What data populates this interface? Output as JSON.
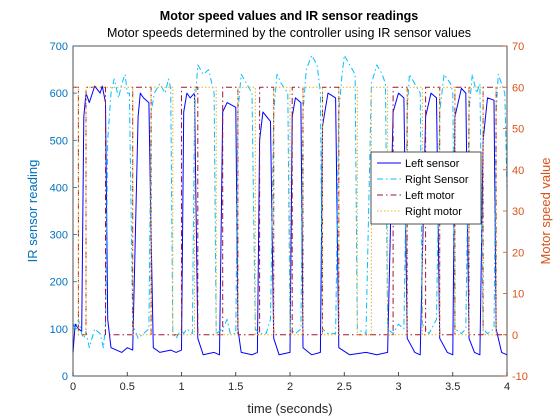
{
  "chart_data": {
    "type": "line",
    "title": "Motor speed values and IR sensor readings",
    "subtitle": "Motor speeds determined by the controller using IR sensor values",
    "xlabel": "time (seconds)",
    "ylabel_left": "IR sensor reading",
    "ylabel_right": "Motor speed value",
    "xlim": [
      0,
      4
    ],
    "ylim_left": [
      0,
      700
    ],
    "ylim_right": [
      -10,
      70
    ],
    "x_ticks": [
      "0",
      "0.5",
      "1",
      "1.5",
      "2",
      "2.5",
      "3",
      "3.5",
      "4"
    ],
    "y_ticks_left": [
      "0",
      "100",
      "200",
      "300",
      "400",
      "500",
      "600",
      "700"
    ],
    "y_ticks_right": [
      "-10",
      "0",
      "10",
      "20",
      "30",
      "40",
      "50",
      "60",
      "70"
    ],
    "legend_position": "right-middle",
    "grid": false,
    "series": [
      {
        "name": "Left sensor",
        "axis": "left",
        "color": "#0000FF",
        "style": "solid",
        "points": [
          [
            0,
            50
          ],
          [
            0.02,
            110
          ],
          [
            0.05,
            100
          ],
          [
            0.08,
            95
          ],
          [
            0.1,
            550
          ],
          [
            0.12,
            600
          ],
          [
            0.15,
            580
          ],
          [
            0.2,
            615
          ],
          [
            0.25,
            600
          ],
          [
            0.27,
            615
          ],
          [
            0.3,
            580
          ],
          [
            0.32,
            120
          ],
          [
            0.35,
            60
          ],
          [
            0.4,
            55
          ],
          [
            0.45,
            50
          ],
          [
            0.5,
            60
          ],
          [
            0.55,
            55
          ],
          [
            0.6,
            550
          ],
          [
            0.62,
            600
          ],
          [
            0.65,
            590
          ],
          [
            0.7,
            580
          ],
          [
            0.72,
            300
          ],
          [
            0.74,
            60
          ],
          [
            0.8,
            50
          ],
          [
            0.9,
            55
          ],
          [
            0.95,
            50
          ],
          [
            1.0,
            55
          ],
          [
            1.02,
            560
          ],
          [
            1.05,
            600
          ],
          [
            1.08,
            590
          ],
          [
            1.12,
            600
          ],
          [
            1.15,
            80
          ],
          [
            1.2,
            45
          ],
          [
            1.3,
            50
          ],
          [
            1.35,
            45
          ],
          [
            1.38,
            560
          ],
          [
            1.42,
            580
          ],
          [
            1.5,
            570
          ],
          [
            1.52,
            100
          ],
          [
            1.55,
            50
          ],
          [
            1.65,
            45
          ],
          [
            1.7,
            50
          ],
          [
            1.72,
            500
          ],
          [
            1.75,
            560
          ],
          [
            1.82,
            540
          ],
          [
            1.85,
            80
          ],
          [
            1.9,
            45
          ],
          [
            2.0,
            50
          ],
          [
            2.02,
            550
          ],
          [
            2.05,
            590
          ],
          [
            2.1,
            580
          ],
          [
            2.12,
            60
          ],
          [
            2.2,
            45
          ],
          [
            2.28,
            50
          ],
          [
            2.3,
            530
          ],
          [
            2.35,
            600
          ],
          [
            2.42,
            590
          ],
          [
            2.45,
            60
          ],
          [
            2.55,
            45
          ],
          [
            2.7,
            50
          ],
          [
            2.8,
            45
          ],
          [
            2.9,
            50
          ],
          [
            2.95,
            560
          ],
          [
            3.0,
            600
          ],
          [
            3.05,
            590
          ],
          [
            3.08,
            80
          ],
          [
            3.15,
            50
          ],
          [
            3.2,
            45
          ],
          [
            3.25,
            550
          ],
          [
            3.3,
            600
          ],
          [
            3.35,
            590
          ],
          [
            3.38,
            80
          ],
          [
            3.45,
            50
          ],
          [
            3.5,
            45
          ],
          [
            3.52,
            550
          ],
          [
            3.58,
            610
          ],
          [
            3.62,
            600
          ],
          [
            3.65,
            80
          ],
          [
            3.7,
            50
          ],
          [
            3.75,
            45
          ],
          [
            3.78,
            500
          ],
          [
            3.82,
            590
          ],
          [
            3.88,
            585
          ],
          [
            3.9,
            100
          ],
          [
            3.95,
            50
          ],
          [
            4.0,
            45
          ]
        ]
      },
      {
        "name": "Right Sensor",
        "axis": "left",
        "color": "#00BFFF",
        "style": "dashdot",
        "points": [
          [
            0,
            110
          ],
          [
            0.02,
            100
          ],
          [
            0.05,
            120
          ],
          [
            0.08,
            90
          ],
          [
            0.1,
            80
          ],
          [
            0.12,
            95
          ],
          [
            0.15,
            60
          ],
          [
            0.2,
            100
          ],
          [
            0.25,
            90
          ],
          [
            0.28,
            60
          ],
          [
            0.3,
            110
          ],
          [
            0.32,
            500
          ],
          [
            0.35,
            600
          ],
          [
            0.38,
            630
          ],
          [
            0.42,
            590
          ],
          [
            0.45,
            620
          ],
          [
            0.48,
            640
          ],
          [
            0.5,
            600
          ],
          [
            0.52,
            600
          ],
          [
            0.55,
            110
          ],
          [
            0.6,
            80
          ],
          [
            0.65,
            90
          ],
          [
            0.7,
            100
          ],
          [
            0.72,
            560
          ],
          [
            0.75,
            600
          ],
          [
            0.8,
            620
          ],
          [
            0.85,
            600
          ],
          [
            0.88,
            630
          ],
          [
            0.9,
            610
          ],
          [
            0.92,
            90
          ],
          [
            0.95,
            80
          ],
          [
            1.0,
            100
          ],
          [
            1.02,
            90
          ],
          [
            1.05,
            100
          ],
          [
            1.1,
            90
          ],
          [
            1.12,
            560
          ],
          [
            1.15,
            660
          ],
          [
            1.2,
            640
          ],
          [
            1.25,
            650
          ],
          [
            1.3,
            600
          ],
          [
            1.32,
            90
          ],
          [
            1.38,
            100
          ],
          [
            1.42,
            120
          ],
          [
            1.45,
            90
          ],
          [
            1.5,
            90
          ],
          [
            1.52,
            560
          ],
          [
            1.55,
            640
          ],
          [
            1.6,
            620
          ],
          [
            1.65,
            600
          ],
          [
            1.68,
            100
          ],
          [
            1.72,
            90
          ],
          [
            1.78,
            90
          ],
          [
            1.82,
            120
          ],
          [
            1.85,
            560
          ],
          [
            1.88,
            640
          ],
          [
            1.92,
            620
          ],
          [
            1.98,
            600
          ],
          [
            2.0,
            100
          ],
          [
            2.05,
            90
          ],
          [
            2.1,
            100
          ],
          [
            2.12,
            560
          ],
          [
            2.15,
            650
          ],
          [
            2.2,
            680
          ],
          [
            2.25,
            660
          ],
          [
            2.28,
            600
          ],
          [
            2.3,
            100
          ],
          [
            2.35,
            90
          ],
          [
            2.42,
            90
          ],
          [
            2.45,
            560
          ],
          [
            2.48,
            640
          ],
          [
            2.5,
            680
          ],
          [
            2.55,
            660
          ],
          [
            2.6,
            640
          ],
          [
            2.62,
            100
          ],
          [
            2.7,
            90
          ],
          [
            2.75,
            620
          ],
          [
            2.8,
            660
          ],
          [
            2.85,
            640
          ],
          [
            2.88,
            620
          ],
          [
            2.9,
            100
          ],
          [
            2.95,
            90
          ],
          [
            3.0,
            110
          ],
          [
            3.05,
            100
          ],
          [
            3.08,
            560
          ],
          [
            3.1,
            640
          ],
          [
            3.15,
            620
          ],
          [
            3.2,
            600
          ],
          [
            3.22,
            110
          ],
          [
            3.28,
            90
          ],
          [
            3.35,
            120
          ],
          [
            3.38,
            560
          ],
          [
            3.42,
            640
          ],
          [
            3.48,
            620
          ],
          [
            3.5,
            600
          ],
          [
            3.52,
            100
          ],
          [
            3.58,
            90
          ],
          [
            3.62,
            100
          ],
          [
            3.65,
            560
          ],
          [
            3.68,
            640
          ],
          [
            3.72,
            600
          ],
          [
            3.75,
            620
          ],
          [
            3.78,
            100
          ],
          [
            3.82,
            90
          ],
          [
            3.88,
            100
          ],
          [
            3.9,
            560
          ],
          [
            3.92,
            640
          ],
          [
            3.95,
            620
          ],
          [
            3.98,
            600
          ],
          [
            4.0,
            400
          ]
        ]
      },
      {
        "name": "Left motor",
        "axis": "right",
        "color": "#A2142F",
        "style": "dashdot",
        "points": [
          [
            0,
            60
          ],
          [
            0.05,
            60
          ],
          [
            0.05,
            0
          ],
          [
            0.12,
            0
          ],
          [
            0.12,
            60
          ],
          [
            0.3,
            60
          ],
          [
            0.3,
            0
          ],
          [
            0.55,
            0
          ],
          [
            0.55,
            60
          ],
          [
            0.72,
            60
          ],
          [
            0.72,
            0
          ],
          [
            1.0,
            0
          ],
          [
            1.0,
            60
          ],
          [
            1.15,
            60
          ],
          [
            1.15,
            0
          ],
          [
            1.38,
            0
          ],
          [
            1.38,
            60
          ],
          [
            1.52,
            60
          ],
          [
            1.52,
            0
          ],
          [
            1.72,
            0
          ],
          [
            1.72,
            60
          ],
          [
            1.85,
            60
          ],
          [
            1.85,
            0
          ],
          [
            2.02,
            0
          ],
          [
            2.02,
            60
          ],
          [
            2.12,
            60
          ],
          [
            2.12,
            0
          ],
          [
            2.3,
            0
          ],
          [
            2.3,
            60
          ],
          [
            2.45,
            60
          ],
          [
            2.45,
            0
          ],
          [
            2.95,
            0
          ],
          [
            2.95,
            60
          ],
          [
            3.08,
            60
          ],
          [
            3.08,
            0
          ],
          [
            3.25,
            0
          ],
          [
            3.25,
            60
          ],
          [
            3.38,
            60
          ],
          [
            3.38,
            0
          ],
          [
            3.52,
            0
          ],
          [
            3.52,
            60
          ],
          [
            3.65,
            60
          ],
          [
            3.65,
            0
          ],
          [
            3.78,
            0
          ],
          [
            3.78,
            60
          ],
          [
            3.9,
            60
          ],
          [
            3.9,
            0
          ],
          [
            4.0,
            0
          ]
        ]
      },
      {
        "name": "Right motor",
        "axis": "right",
        "color": "#EDB120",
        "style": "dotted",
        "points": [
          [
            0,
            60
          ],
          [
            0.05,
            60
          ],
          [
            0.05,
            0
          ],
          [
            0.12,
            0
          ],
          [
            0.12,
            60
          ],
          [
            0.32,
            60
          ],
          [
            0.32,
            60
          ],
          [
            0.55,
            60
          ],
          [
            0.55,
            0
          ],
          [
            0.72,
            0
          ],
          [
            0.72,
            60
          ],
          [
            0.92,
            60
          ],
          [
            0.92,
            0
          ],
          [
            1.12,
            0
          ],
          [
            1.12,
            60
          ],
          [
            1.32,
            60
          ],
          [
            1.32,
            0
          ],
          [
            1.52,
            0
          ],
          [
            1.52,
            60
          ],
          [
            1.68,
            60
          ],
          [
            1.68,
            0
          ],
          [
            1.85,
            0
          ],
          [
            1.85,
            60
          ],
          [
            2.0,
            60
          ],
          [
            2.0,
            0
          ],
          [
            2.12,
            0
          ],
          [
            2.12,
            60
          ],
          [
            2.3,
            60
          ],
          [
            2.3,
            0
          ],
          [
            2.45,
            0
          ],
          [
            2.45,
            60
          ],
          [
            2.62,
            60
          ],
          [
            2.62,
            0
          ],
          [
            2.75,
            0
          ],
          [
            2.75,
            60
          ],
          [
            2.9,
            60
          ],
          [
            2.9,
            0
          ],
          [
            3.08,
            0
          ],
          [
            3.08,
            60
          ],
          [
            3.22,
            60
          ],
          [
            3.22,
            0
          ],
          [
            3.38,
            0
          ],
          [
            3.38,
            60
          ],
          [
            3.52,
            60
          ],
          [
            3.52,
            0
          ],
          [
            3.65,
            0
          ],
          [
            3.65,
            60
          ],
          [
            3.78,
            60
          ],
          [
            3.78,
            0
          ],
          [
            3.9,
            0
          ],
          [
            3.9,
            60
          ],
          [
            4.0,
            60
          ]
        ]
      }
    ]
  }
}
